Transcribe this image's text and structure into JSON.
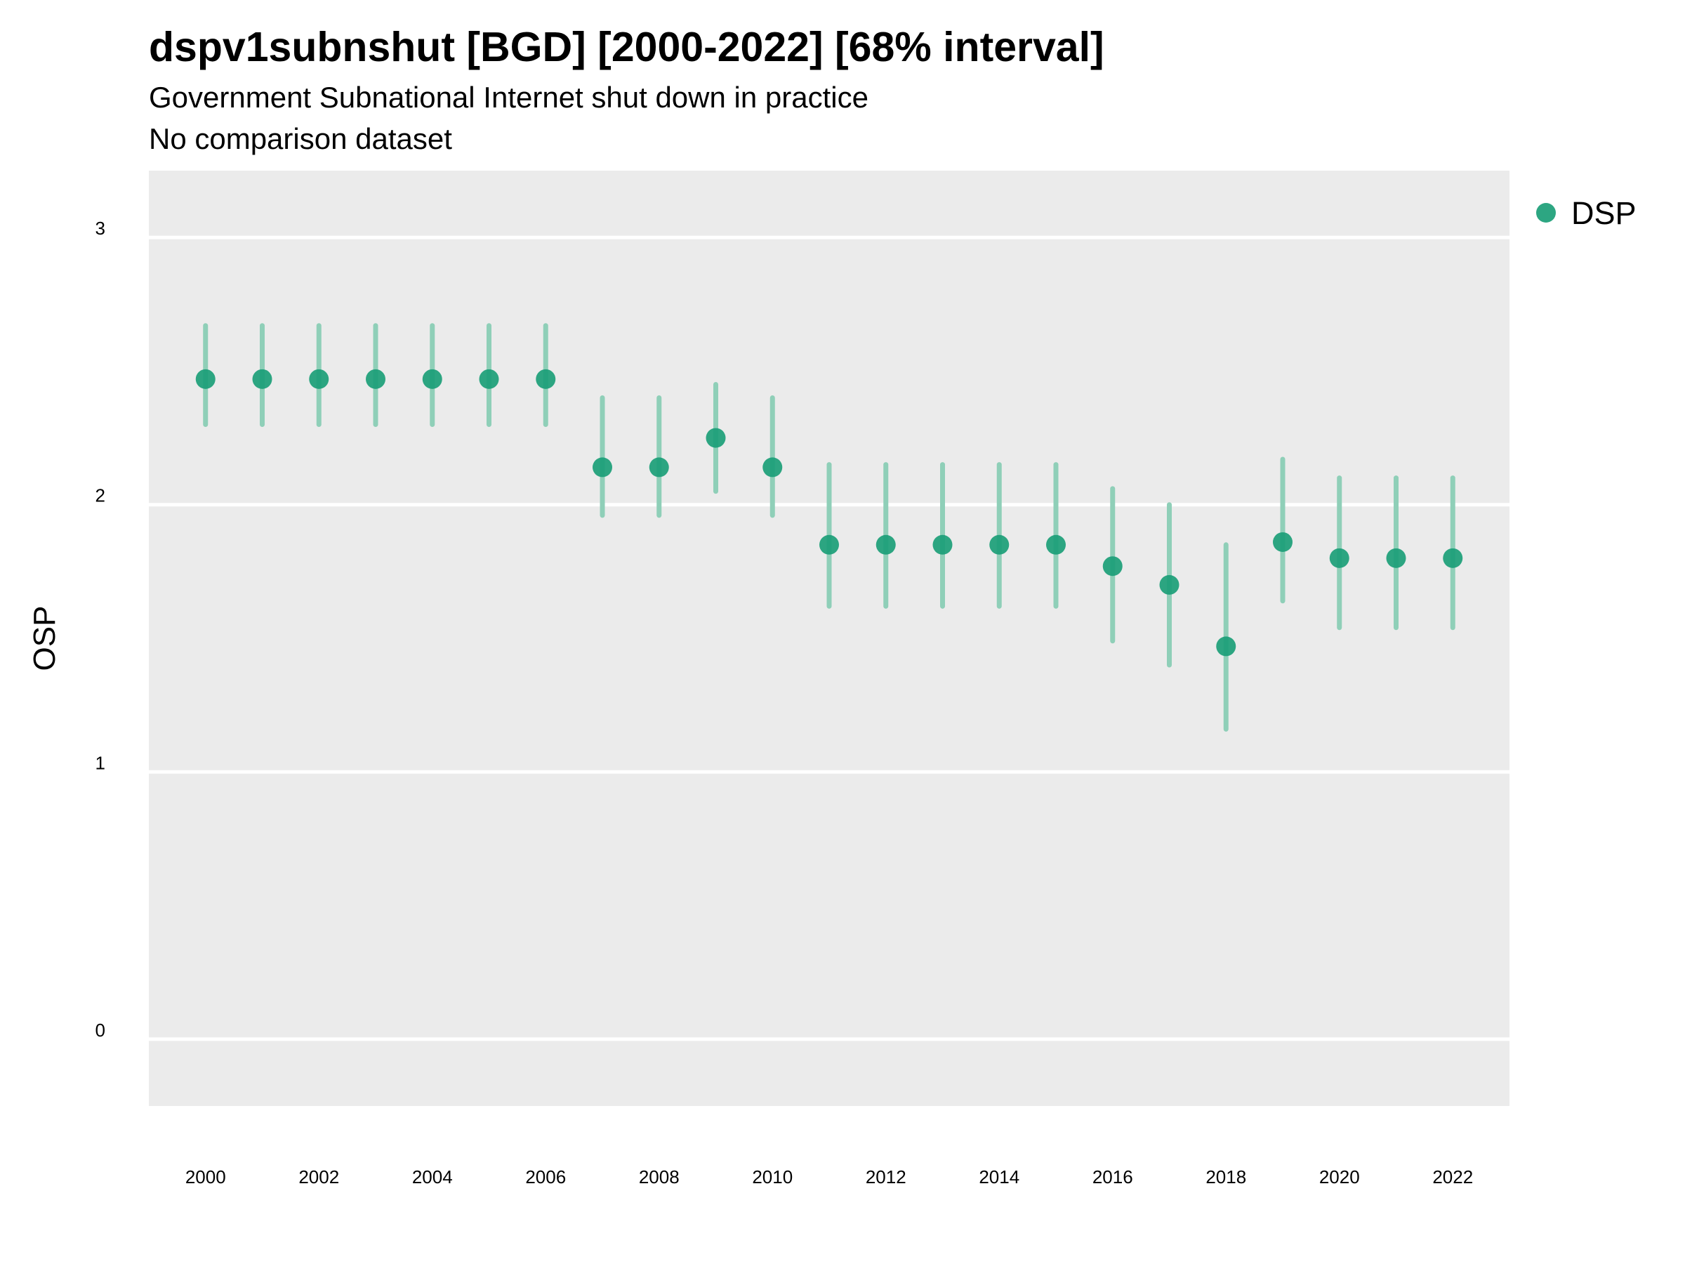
{
  "chart_data": {
    "type": "scatter",
    "title": "dspv1subnshut [BGD] [2000-2022] [68% interval]",
    "subtitle": [
      "Government Subnational Internet shut down in practice",
      "No comparison dataset"
    ],
    "ylabel": "OSP",
    "xlabel": "",
    "ylim": [
      -0.25,
      3.25
    ],
    "yticks": [
      0,
      1,
      2,
      3
    ],
    "xlim": [
      1999.0,
      2023.0
    ],
    "xticks": [
      2000,
      2002,
      2004,
      2006,
      2008,
      2010,
      2012,
      2014,
      2016,
      2018,
      2020,
      2022
    ],
    "grid": true,
    "legend_position": "right",
    "series": [
      {
        "name": "DSP",
        "color": "#1b9e77",
        "x": [
          2000,
          2001,
          2002,
          2003,
          2004,
          2005,
          2006,
          2007,
          2008,
          2009,
          2010,
          2011,
          2012,
          2013,
          2014,
          2015,
          2016,
          2017,
          2018,
          2019,
          2020,
          2021,
          2022
        ],
        "y": [
          2.47,
          2.47,
          2.47,
          2.47,
          2.47,
          2.47,
          2.47,
          2.14,
          2.14,
          2.25,
          2.14,
          1.85,
          1.85,
          1.85,
          1.85,
          1.85,
          1.77,
          1.7,
          1.47,
          1.86,
          1.8,
          1.8,
          1.8
        ],
        "lower": [
          2.3,
          2.3,
          2.3,
          2.3,
          2.3,
          2.3,
          2.3,
          1.96,
          1.96,
          2.05,
          1.96,
          1.62,
          1.62,
          1.62,
          1.62,
          1.62,
          1.49,
          1.4,
          1.16,
          1.64,
          1.54,
          1.54,
          1.54
        ],
        "upper": [
          2.67,
          2.67,
          2.67,
          2.67,
          2.67,
          2.67,
          2.67,
          2.4,
          2.4,
          2.45,
          2.4,
          2.15,
          2.15,
          2.15,
          2.15,
          2.15,
          2.06,
          2.0,
          1.85,
          2.17,
          2.1,
          2.1,
          2.1
        ]
      }
    ]
  },
  "colors": {
    "panel_background": "#ebebeb",
    "grid": "#ffffff",
    "point": "#1b9e77",
    "interval": "#8fcfb8"
  }
}
